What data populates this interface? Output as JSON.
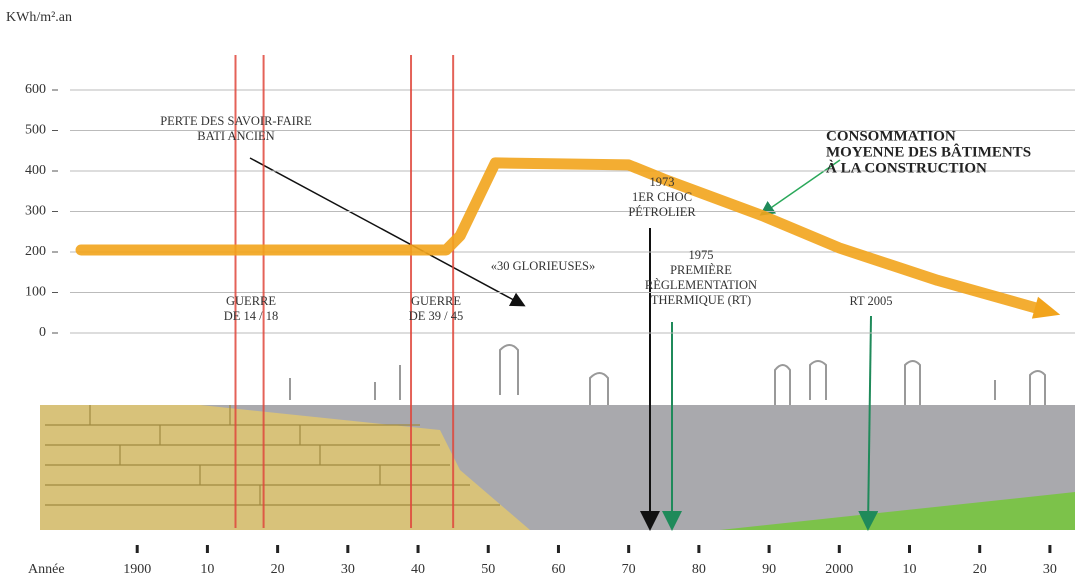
{
  "chart_data": {
    "type": "line",
    "y_label": "KWh/m².an",
    "x_label": "Année",
    "xlim": [
      1890,
      2034
    ],
    "ylim": [
      0,
      600
    ],
    "xticks": [
      1900,
      {
        "value": 1910,
        "label": "10"
      },
      {
        "value": 1920,
        "label": "20"
      },
      {
        "value": 1930,
        "label": "30"
      },
      {
        "value": 1940,
        "label": "40"
      },
      {
        "value": 1950,
        "label": "50"
      },
      {
        "value": 1960,
        "label": "60"
      },
      {
        "value": 1970,
        "label": "70"
      },
      {
        "value": 1980,
        "label": "80"
      },
      {
        "value": 1990,
        "label": "90"
      },
      2000,
      {
        "value": 2010,
        "label": "10"
      },
      {
        "value": 2020,
        "label": "20"
      },
      {
        "value": 2030,
        "label": "30"
      }
    ],
    "yticks": [
      0,
      100,
      200,
      300,
      400,
      500,
      600
    ],
    "grid": true,
    "series": [
      {
        "name": "CONSOMMATION MOYENNE DES BÂTIMENTS À LA CONSTRUCTION",
        "color": "#f2a41c",
        "x": [
          1892,
          1944,
          1946,
          1951,
          1970,
          1975,
          1989,
          2000,
          2014,
          2029
        ],
        "values": [
          205,
          205,
          240,
          420,
          415,
          380,
          290,
          210,
          130,
          57
        ]
      }
    ],
    "series_label_lines": [
      "CONSOMMATION",
      "MOYENNE DES BÂTIMENTS",
      "À LA CONSTRUCTION"
    ],
    "markers": [
      1914,
      1918,
      1939,
      1945
    ],
    "marker_color": "#e0473c",
    "annotations": [
      {
        "lines": [
          "PERTE DES SAVOIR-FAIRE",
          "BATI ANCIEN"
        ]
      },
      {
        "lines": [
          "GUERRE",
          "DE 14 / 18"
        ]
      },
      {
        "lines": [
          "GUERRE",
          "DE 39 / 45"
        ]
      },
      {
        "lines": [
          "«30 GLORIEUSES»"
        ]
      },
      {
        "lines": [
          "1973",
          "1ER CHOC",
          "PÉTROLIER"
        ]
      },
      {
        "lines": [
          "1975",
          "PREMIÈRE",
          "RÈGLEMENTATION",
          "THERMIQUE (RT)"
        ]
      },
      {
        "lines": [
          "RT 2005"
        ]
      }
    ]
  }
}
